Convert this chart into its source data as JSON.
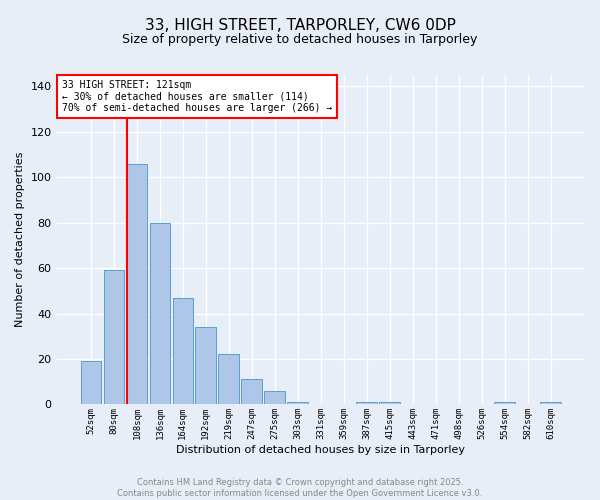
{
  "title_line1": "33, HIGH STREET, TARPORLEY, CW6 0DP",
  "title_line2": "Size of property relative to detached houses in Tarporley",
  "xlabel": "Distribution of detached houses by size in Tarporley",
  "ylabel": "Number of detached properties",
  "bar_labels": [
    "52sqm",
    "80sqm",
    "108sqm",
    "136sqm",
    "164sqm",
    "192sqm",
    "219sqm",
    "247sqm",
    "275sqm",
    "303sqm",
    "331sqm",
    "359sqm",
    "387sqm",
    "415sqm",
    "443sqm",
    "471sqm",
    "498sqm",
    "526sqm",
    "554sqm",
    "582sqm",
    "610sqm"
  ],
  "bar_values": [
    19,
    59,
    106,
    80,
    47,
    34,
    22,
    11,
    6,
    1,
    0,
    0,
    1,
    1,
    0,
    0,
    0,
    0,
    1,
    0,
    1
  ],
  "bar_color": "#aec6e8",
  "bar_edge_color": "#5a9fd4",
  "vline_x_index": 2,
  "vline_color": "red",
  "ylim": [
    0,
    145
  ],
  "yticks": [
    0,
    20,
    40,
    60,
    80,
    100,
    120,
    140
  ],
  "annotation_text": "33 HIGH STREET: 121sqm\n← 30% of detached houses are smaller (114)\n70% of semi-detached houses are larger (266) →",
  "annotation_box_color": "white",
  "annotation_box_edge_color": "red",
  "footer_text": "Contains HM Land Registry data © Crown copyright and database right 2025.\nContains public sector information licensed under the Open Government Licence v3.0.",
  "bg_color": "#e8eef8",
  "plot_bg_color": "#e8eef8",
  "grid_color": "white",
  "title_fontsize": 11,
  "subtitle_fontsize": 9,
  "xlabel_fontsize": 8,
  "ylabel_fontsize": 8,
  "xtick_fontsize": 6.5,
  "ytick_fontsize": 8,
  "annotation_fontsize": 7,
  "footer_fontsize": 6,
  "footer_color": "#888888"
}
